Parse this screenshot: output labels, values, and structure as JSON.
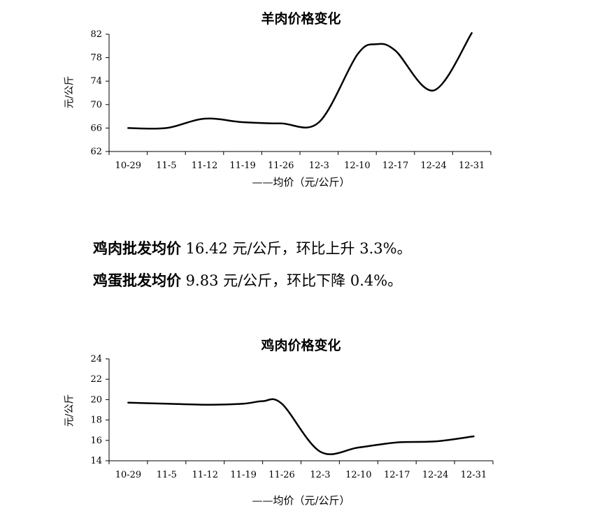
{
  "chart_data": [
    {
      "type": "line",
      "title": "羊肉价格变化",
      "ylabel": "元/公斤",
      "xlabel": "",
      "categories": [
        "10-29",
        "11-5",
        "11-12",
        "11-19",
        "11-26",
        "12-3",
        "12-10",
        "12-17",
        "12-24",
        "12-31"
      ],
      "series": [
        {
          "name": "——均价（元/公斤）",
          "x": [
            0,
            1,
            2,
            3,
            4,
            5,
            6,
            6.5,
            7,
            8,
            9
          ],
          "values": [
            66.0,
            66.0,
            67.6,
            67.0,
            66.8,
            67.0,
            78.5,
            80.3,
            79.2,
            72.4,
            82.2
          ]
        }
      ],
      "ylim": [
        62,
        82
      ],
      "yticks": [
        62,
        66,
        70,
        74,
        78,
        82
      ],
      "grid": false,
      "legend": "bottom"
    },
    {
      "type": "line",
      "title": "鸡肉价格变化",
      "ylabel": "元/公斤",
      "xlabel": "",
      "categories": [
        "10-29",
        "11-5",
        "11-12",
        "11-19",
        "11-26",
        "12-3",
        "12-10",
        "12-17",
        "12-24",
        "12-31"
      ],
      "series": [
        {
          "name": "——均价（元/公斤）",
          "x": [
            0,
            1,
            2,
            3,
            3.5,
            4,
            5,
            6,
            7,
            8,
            9
          ],
          "values": [
            19.7,
            19.6,
            19.5,
            19.6,
            19.85,
            19.6,
            14.9,
            15.3,
            15.8,
            15.9,
            16.4
          ]
        }
      ],
      "ylim": [
        14,
        24
      ],
      "yticks": [
        14,
        16,
        18,
        20,
        22,
        24
      ],
      "grid": false,
      "legend": "bottom"
    }
  ],
  "text": {
    "line1_bold": "鸡肉批发均价",
    "line1_rest": " 16.42 元/公斤，环比上升 3.3%。",
    "line2_bold": "鸡蛋批发均价",
    "line2_rest": " 9.83 元/公斤，环比下降 0.4%。"
  }
}
